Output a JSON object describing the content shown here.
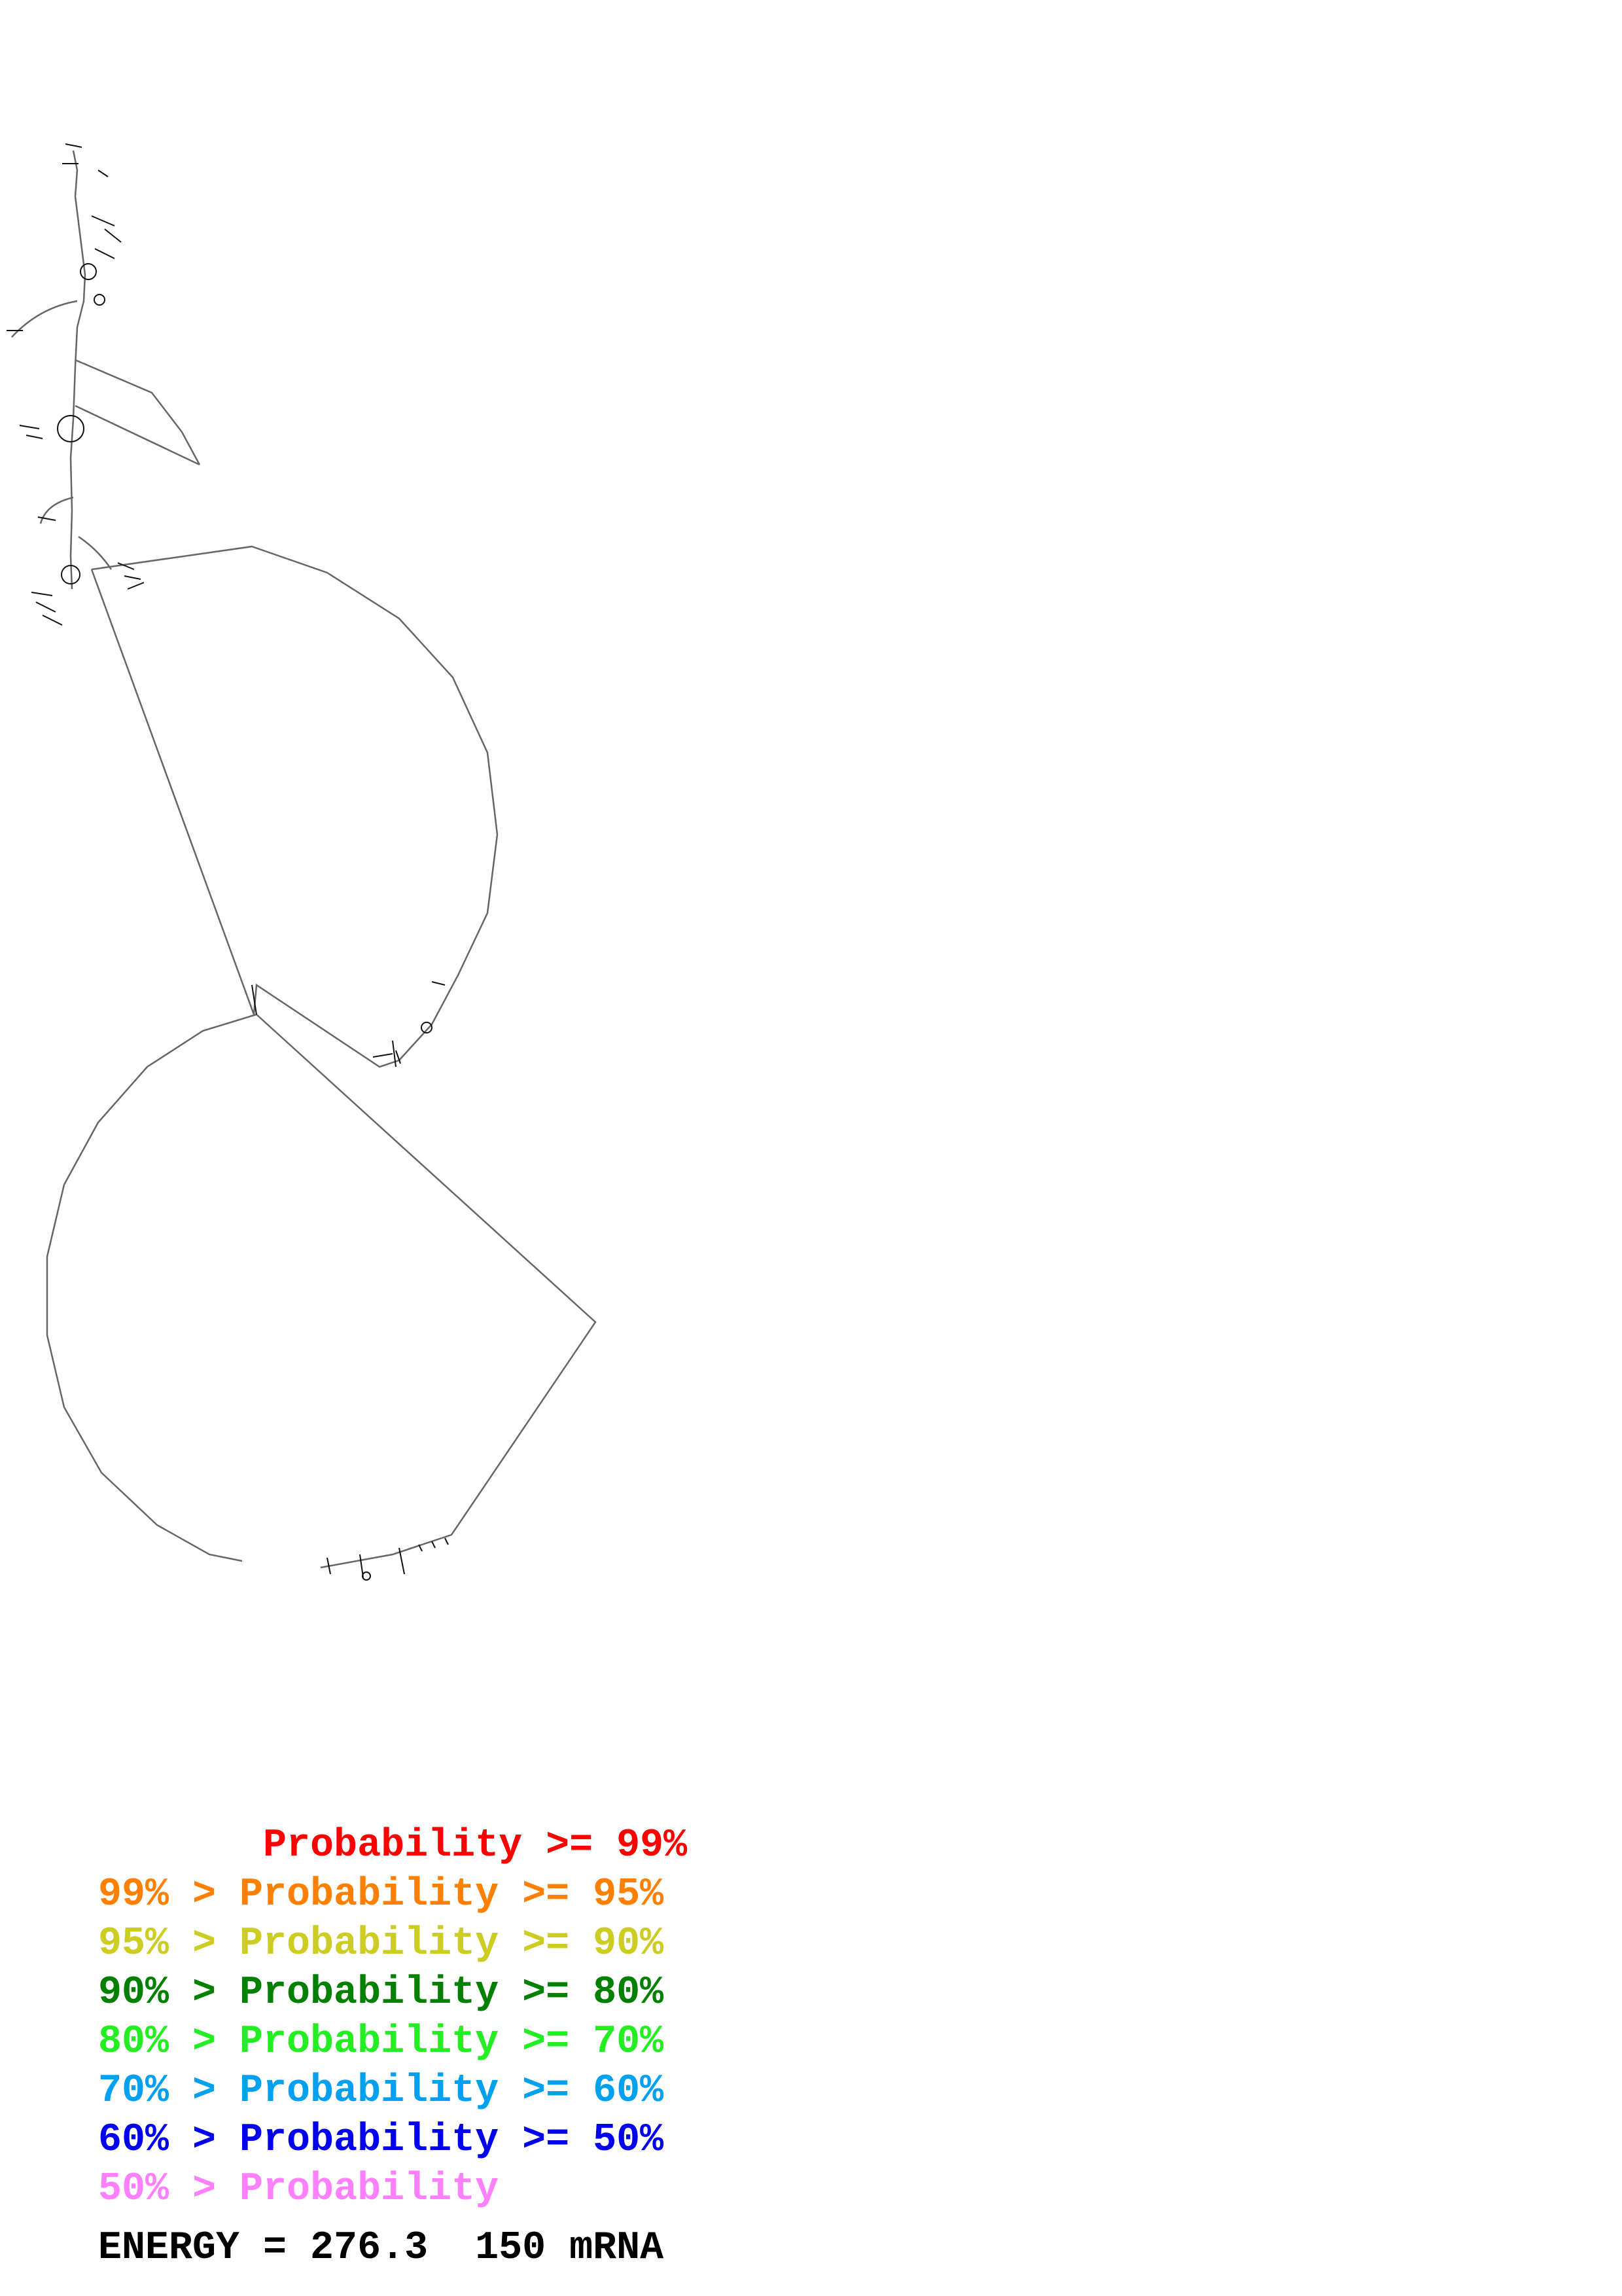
{
  "legend": [
    {
      "text": "       Probability >= 99%",
      "color": "#ff0000"
    },
    {
      "text": "99% > Probability >= 95%",
      "color": "#ff8000"
    },
    {
      "text": "95% > Probability >= 90%",
      "color": "#cccc22"
    },
    {
      "text": "90% > Probability >= 80%",
      "color": "#008000"
    },
    {
      "text": "80% > Probability >= 70%",
      "color": "#22ee22"
    },
    {
      "text": "70% > Probability >= 60%",
      "color": "#00a0f0"
    },
    {
      "text": "60% > Probability >= 50%",
      "color": "#0000ee"
    },
    {
      "text": "50% > Probability",
      "color": "#ff80ff"
    }
  ],
  "energy_label": "ENERGY = 276.3  150 mRNA",
  "structure": {
    "line_color": "#555555",
    "nucleotide_color": "#000000"
  }
}
